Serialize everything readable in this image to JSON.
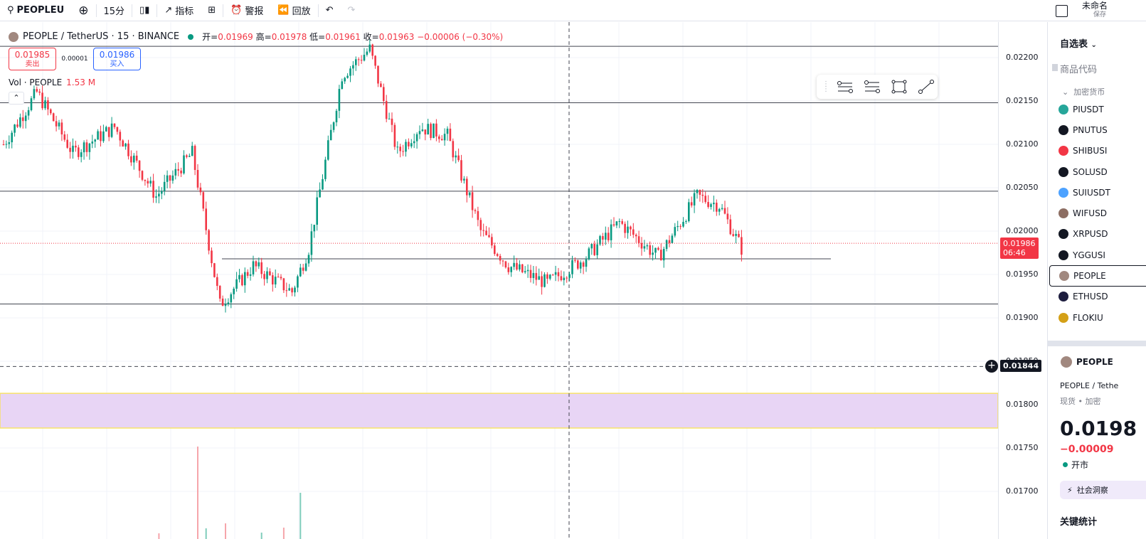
{
  "toolbar": {
    "symbol": "PEOPLEU",
    "interval": "15分",
    "indicators_label": "指标",
    "alert_label": "警报",
    "replay_label": "回放",
    "layout_name": "未命名",
    "save_label": "保存"
  },
  "legend": {
    "title": "PEOPLE / TetherUS · 15 · BINANCE",
    "open_label": "开=",
    "open": "0.01969",
    "high_label": "高=",
    "high": "0.01978",
    "low_label": "低=",
    "low": "0.01961",
    "close_label": "收=",
    "close": "0.01963",
    "change": "−0.00006 (−0.30%)",
    "bid_price": "0.01985",
    "bid_label": "卖出",
    "spread": "0.00001",
    "ask_price": "0.01986",
    "ask_label": "买入",
    "vol_label": "Vol · PEOPLE",
    "vol_value": "1.53 M"
  },
  "price_tags": {
    "last": "0.01986",
    "countdown": "06:46",
    "crosshair": "0.01844"
  },
  "chart_data": {
    "type": "candlestick",
    "symbol": "PEOPLE / TetherUS",
    "interval": "15",
    "exchange": "BINANCE",
    "ylim": [
      0.0168,
      0.0224
    ],
    "yticks": [
      "0.02200",
      "0.02150",
      "0.02100",
      "0.02050",
      "0.02000",
      "0.01950",
      "0.01900",
      "0.01850",
      "0.01800",
      "0.01750",
      "0.01700"
    ],
    "key_points": [
      {
        "bar": 0,
        "price": 0.021
      },
      {
        "bar": 12,
        "price": 0.0216
      },
      {
        "bar": 25,
        "price": 0.0209
      },
      {
        "bar": 40,
        "price": 0.0212
      },
      {
        "bar": 55,
        "price": 0.0204
      },
      {
        "bar": 68,
        "price": 0.0209
      },
      {
        "bar": 78,
        "price": 0.01915
      },
      {
        "bar": 90,
        "price": 0.0196
      },
      {
        "bar": 104,
        "price": 0.0193
      },
      {
        "bar": 110,
        "price": 0.0198
      },
      {
        "bar": 122,
        "price": 0.0218
      },
      {
        "bar": 132,
        "price": 0.0221
      },
      {
        "bar": 142,
        "price": 0.0209
      },
      {
        "bar": 150,
        "price": 0.0212
      },
      {
        "bar": 160,
        "price": 0.0211
      },
      {
        "bar": 172,
        "price": 0.02
      },
      {
        "bar": 182,
        "price": 0.0196
      },
      {
        "bar": 196,
        "price": 0.0194
      },
      {
        "bar": 210,
        "price": 0.0197
      },
      {
        "bar": 222,
        "price": 0.0201
      },
      {
        "bar": 236,
        "price": 0.0197
      },
      {
        "bar": 250,
        "price": 0.0204
      },
      {
        "bar": 258,
        "price": 0.0203
      },
      {
        "bar": 266,
        "price": 0.0198
      }
    ],
    "last_price": 0.01986,
    "horizontal_levels": [
      0.02213,
      0.02148,
      0.02046,
      0.01968,
      0.01916
    ],
    "crosshair_price": 0.01844,
    "zone": {
      "from": 0.01773,
      "to": 0.01813,
      "color": "#e8d5f5"
    },
    "volume_spikes": [
      {
        "bar": 70,
        "side": "down",
        "rel": 1.0
      },
      {
        "bar": 107,
        "side": "up",
        "rel": 0.5
      }
    ]
  },
  "watchlist": {
    "title": "自选表",
    "column_header": "商品代码",
    "group": "加密货币",
    "items": [
      {
        "symbol": "PIUSDT",
        "color": "#26a69a"
      },
      {
        "symbol": "PNUTUS",
        "color": "#131722"
      },
      {
        "symbol": "SHIBUSI",
        "color": "#f23645"
      },
      {
        "symbol": "SOLUSD",
        "color": "#131722"
      },
      {
        "symbol": "SUIUSDT",
        "color": "#4da2ff"
      },
      {
        "symbol": "WIFUSD",
        "color": "#8d6e63"
      },
      {
        "symbol": "XRPUSD",
        "color": "#131722"
      },
      {
        "symbol": "YGGUSI",
        "color": "#131722"
      },
      {
        "symbol": "PEOPLE",
        "color": "#a1887f"
      },
      {
        "symbol": "ETHUSD",
        "color": "#1e1e3f"
      },
      {
        "symbol": "FLOKIU",
        "color": "#d4a017"
      }
    ]
  },
  "details": {
    "name": "PEOPLE",
    "pair": "PEOPLE / Tethe",
    "type": "现货 • 加密",
    "price": "0.0198",
    "change": "−0.00009",
    "status": "开市",
    "social": "社会洞察",
    "stats": "关键统计"
  }
}
